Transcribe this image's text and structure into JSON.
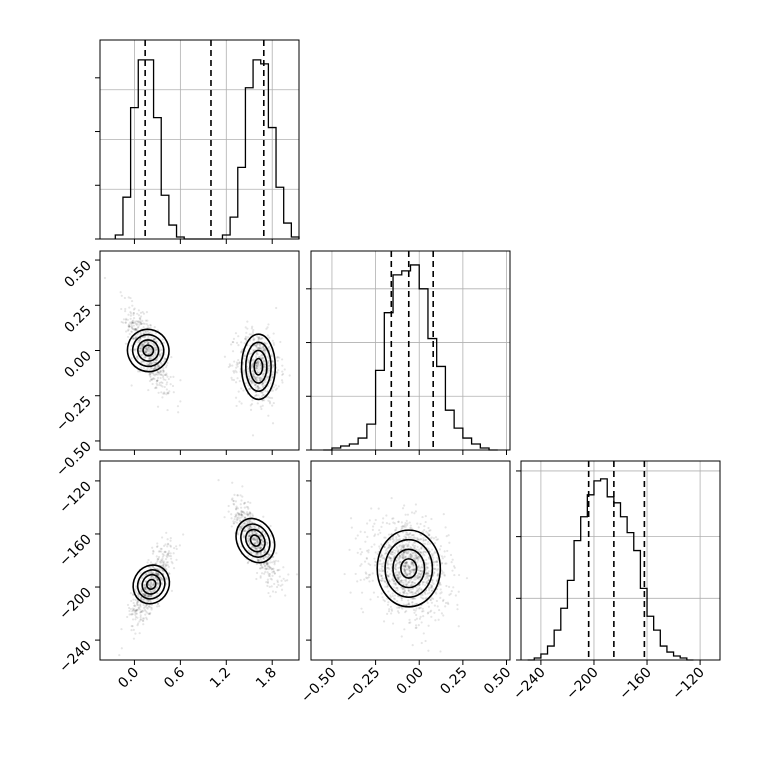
{
  "chart_data": [
    {
      "type": "histogram",
      "panel": "row-0-col-0",
      "xlim": [
        -0.45,
        2.15
      ],
      "ylim": [
        0,
        1.0
      ],
      "bins": [
        {
          "x0": -0.25,
          "x1": -0.15,
          "count": 0.02
        },
        {
          "x0": -0.15,
          "x1": -0.05,
          "count": 0.21
        },
        {
          "x0": -0.05,
          "x1": 0.05,
          "count": 0.66
        },
        {
          "x0": 0.05,
          "x1": 0.15,
          "count": 0.9
        },
        {
          "x0": 0.15,
          "x1": 0.25,
          "count": 0.9
        },
        {
          "x0": 0.25,
          "x1": 0.35,
          "count": 0.61
        },
        {
          "x0": 0.35,
          "x1": 0.45,
          "count": 0.22
        },
        {
          "x0": 0.45,
          "x1": 0.55,
          "count": 0.07
        },
        {
          "x0": 0.55,
          "x1": 0.65,
          "count": 0.01
        },
        {
          "x0": 0.65,
          "x1": 1.15,
          "count": 0.0
        },
        {
          "x0": 1.15,
          "x1": 1.25,
          "count": 0.02
        },
        {
          "x0": 1.25,
          "x1": 1.35,
          "count": 0.11
        },
        {
          "x0": 1.35,
          "x1": 1.45,
          "count": 0.36
        },
        {
          "x0": 1.45,
          "x1": 1.55,
          "count": 0.76
        },
        {
          "x0": 1.55,
          "x1": 1.65,
          "count": 0.9
        },
        {
          "x0": 1.65,
          "x1": 1.75,
          "count": 0.88
        },
        {
          "x0": 1.75,
          "x1": 1.85,
          "count": 0.56
        },
        {
          "x0": 1.85,
          "x1": 1.95,
          "count": 0.26
        },
        {
          "x0": 1.95,
          "x1": 2.05,
          "count": 0.08
        },
        {
          "x0": 2.05,
          "x1": 2.15,
          "count": 0.01
        }
      ],
      "quantiles": [
        0.14,
        1.0,
        1.69
      ]
    },
    {
      "type": "histogram",
      "panel": "row-1-col-1",
      "xlim": [
        -0.62,
        0.52
      ],
      "ylim": [
        0,
        1.0
      ],
      "bins": [
        {
          "x0": -0.55,
          "x1": -0.5,
          "count": 0.0
        },
        {
          "x0": -0.5,
          "x1": -0.45,
          "count": 0.01
        },
        {
          "x0": -0.45,
          "x1": -0.4,
          "count": 0.02
        },
        {
          "x0": -0.4,
          "x1": -0.35,
          "count": 0.03
        },
        {
          "x0": -0.35,
          "x1": -0.3,
          "count": 0.06
        },
        {
          "x0": -0.3,
          "x1": -0.25,
          "count": 0.13
        },
        {
          "x0": -0.25,
          "x1": -0.2,
          "count": 0.4
        },
        {
          "x0": -0.2,
          "x1": -0.15,
          "count": 0.69
        },
        {
          "x0": -0.15,
          "x1": -0.1,
          "count": 0.88
        },
        {
          "x0": -0.1,
          "x1": -0.05,
          "count": 0.9
        },
        {
          "x0": -0.05,
          "x1": 0.0,
          "count": 0.93
        },
        {
          "x0": 0.0,
          "x1": 0.05,
          "count": 0.81
        },
        {
          "x0": 0.05,
          "x1": 0.1,
          "count": 0.56
        },
        {
          "x0": 0.1,
          "x1": 0.15,
          "count": 0.42
        },
        {
          "x0": 0.15,
          "x1": 0.2,
          "count": 0.2
        },
        {
          "x0": 0.2,
          "x1": 0.25,
          "count": 0.11
        },
        {
          "x0": 0.25,
          "x1": 0.3,
          "count": 0.06
        },
        {
          "x0": 0.3,
          "x1": 0.35,
          "count": 0.03
        },
        {
          "x0": 0.35,
          "x1": 0.4,
          "count": 0.01
        },
        {
          "x0": 0.4,
          "x1": 0.45,
          "count": 0.0
        }
      ],
      "quantiles": [
        -0.16,
        -0.06,
        0.08
      ]
    },
    {
      "type": "histogram",
      "panel": "row-2-col-2",
      "xlim": [
        -255,
        -105
      ],
      "ylim": [
        0,
        1.0
      ],
      "bins": [
        {
          "x0": -250,
          "x1": -245,
          "count": 0.0
        },
        {
          "x0": -245,
          "x1": -240,
          "count": 0.01
        },
        {
          "x0": -240,
          "x1": -235,
          "count": 0.03
        },
        {
          "x0": -235,
          "x1": -230,
          "count": 0.07
        },
        {
          "x0": -230,
          "x1": -225,
          "count": 0.15
        },
        {
          "x0": -225,
          "x1": -220,
          "count": 0.26
        },
        {
          "x0": -220,
          "x1": -215,
          "count": 0.4
        },
        {
          "x0": -215,
          "x1": -210,
          "count": 0.6
        },
        {
          "x0": -210,
          "x1": -205,
          "count": 0.72
        },
        {
          "x0": -205,
          "x1": -200,
          "count": 0.83
        },
        {
          "x0": -200,
          "x1": -195,
          "count": 0.9
        },
        {
          "x0": -195,
          "x1": -190,
          "count": 0.91
        },
        {
          "x0": -190,
          "x1": -185,
          "count": 0.82
        },
        {
          "x0": -185,
          "x1": -180,
          "count": 0.79
        },
        {
          "x0": -180,
          "x1": -175,
          "count": 0.72
        },
        {
          "x0": -175,
          "x1": -170,
          "count": 0.64
        },
        {
          "x0": -170,
          "x1": -165,
          "count": 0.55
        },
        {
          "x0": -165,
          "x1": -160,
          "count": 0.36
        },
        {
          "x0": -160,
          "x1": -155,
          "count": 0.22
        },
        {
          "x0": -155,
          "x1": -150,
          "count": 0.15
        },
        {
          "x0": -150,
          "x1": -145,
          "count": 0.07
        },
        {
          "x0": -145,
          "x1": -140,
          "count": 0.04
        },
        {
          "x0": -140,
          "x1": -135,
          "count": 0.02
        },
        {
          "x0": -135,
          "x1": -130,
          "count": 0.01
        },
        {
          "x0": -130,
          "x1": -125,
          "count": 0.0
        }
      ],
      "quantiles": [
        -204,
        -185,
        -162
      ]
    },
    {
      "type": "scatter",
      "panel": "row-1-col-0",
      "xlim": [
        -0.45,
        2.15
      ],
      "ylim": [
        -0.55,
        0.55
      ],
      "clusters": [
        {
          "cx": 0.18,
          "cy": 0.0,
          "sx": 0.14,
          "sy": 0.12,
          "rho": -0.75,
          "n": 600
        },
        {
          "cx": 1.62,
          "cy": -0.09,
          "sx": 0.14,
          "sy": 0.1,
          "rho": -0.1,
          "n": 600
        }
      ]
    },
    {
      "type": "scatter",
      "panel": "row-2-col-0",
      "xlim": [
        -0.45,
        2.15
      ],
      "ylim": [
        -255,
        -105
      ],
      "clusters": [
        {
          "cx": 0.22,
          "cy": -198,
          "sx": 0.13,
          "sy": 14,
          "rho": 0.75,
          "n": 600
        },
        {
          "cx": 1.58,
          "cy": -165,
          "sx": 0.15,
          "sy": 16,
          "rho": -0.8,
          "n": 600
        }
      ]
    },
    {
      "type": "scatter",
      "panel": "row-2-col-1",
      "xlim": [
        -0.62,
        0.52
      ],
      "ylim": [
        -255,
        -105
      ],
      "clusters": [
        {
          "cx": -0.06,
          "cy": -186,
          "sx": 0.11,
          "sy": 17,
          "rho": -0.2,
          "n": 1200
        }
      ]
    }
  ],
  "axes": {
    "col0_x_ticks": [
      {
        "value": 0.0,
        "label": "0.0"
      },
      {
        "value": 0.6,
        "label": "0.6"
      },
      {
        "value": 1.2,
        "label": "1.2"
      },
      {
        "value": 1.8,
        "label": "1.8"
      }
    ],
    "col1_x_ticks": [
      {
        "value": -0.5,
        "label": "−0.50"
      },
      {
        "value": -0.25,
        "label": "−0.25"
      },
      {
        "value": 0.0,
        "label": "0.00"
      },
      {
        "value": 0.25,
        "label": "0.25"
      },
      {
        "value": 0.5,
        "label": "0.50"
      }
    ],
    "col2_x_ticks": [
      {
        "value": -240,
        "label": "−240"
      },
      {
        "value": -200,
        "label": "−200"
      },
      {
        "value": -160,
        "label": "−160"
      },
      {
        "value": -120,
        "label": "−120"
      }
    ],
    "row1_y_ticks": [
      {
        "value": 0.5,
        "label": "0.50"
      },
      {
        "value": 0.25,
        "label": "0.25"
      },
      {
        "value": 0.0,
        "label": "0.00"
      },
      {
        "value": -0.25,
        "label": "−0.25"
      },
      {
        "value": -0.5,
        "label": "−0.50"
      }
    ],
    "row2_y_ticks": [
      {
        "value": -120,
        "label": "−120"
      },
      {
        "value": -160,
        "label": "−160"
      },
      {
        "value": -200,
        "label": "−200"
      },
      {
        "value": -240,
        "label": "−240"
      }
    ]
  }
}
